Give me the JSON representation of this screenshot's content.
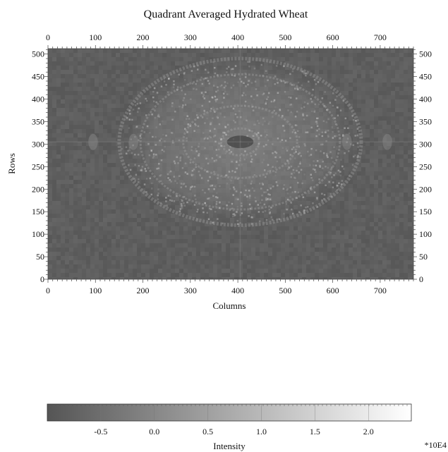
{
  "chart_data": {
    "type": "heatmap",
    "title": "Quadrant Averaged Hydrated Wheat",
    "xlabel": "Columns",
    "ylabel": "Rows",
    "xlim": [
      0,
      770
    ],
    "ylim": [
      0,
      512
    ],
    "x_ticks": [
      0,
      100,
      200,
      300,
      400,
      500,
      600,
      700
    ],
    "y_ticks": [
      0,
      50,
      100,
      150,
      200,
      250,
      300,
      350,
      400,
      450,
      500
    ],
    "y_ticks_right": [
      0,
      50,
      100,
      150,
      200,
      250,
      300,
      350,
      400,
      450,
      500
    ],
    "pattern": {
      "center": [
        405,
        305
      ],
      "ring_radii_x": [
        40,
        120,
        210,
        255
      ],
      "ring_radii_y": [
        30,
        80,
        150,
        185
      ],
      "side_features_x": [
        95,
        180,
        630,
        715
      ]
    },
    "colorbar": {
      "label": "Intensity",
      "multiplier": "*10E4",
      "range": [
        -1.0,
        2.4
      ],
      "ticks": [
        -0.5,
        0.0,
        0.5,
        1.0,
        1.5,
        2.0
      ],
      "tick_labels": [
        "-0.5",
        "0.0",
        "0.5",
        "1.0",
        "1.5",
        "2.0"
      ],
      "color_low": "#555555",
      "color_high": "#ffffff"
    }
  }
}
